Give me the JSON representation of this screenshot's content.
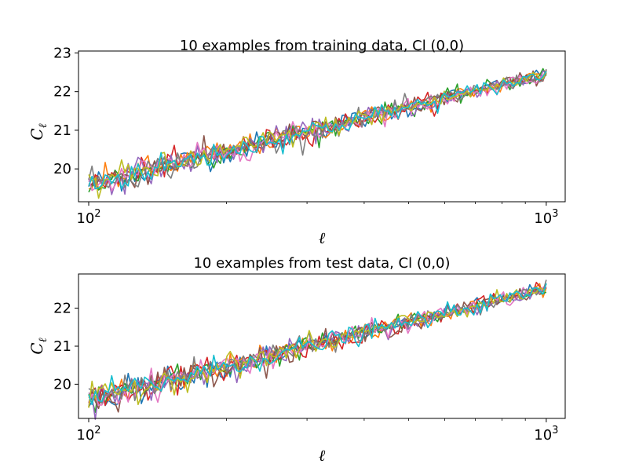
{
  "chart_data": [
    {
      "type": "line",
      "title": "10 examples from training data, Cl (0,0)",
      "xlabel": "ℓ",
      "ylabel_main": "C",
      "ylabel_sub": "ℓ",
      "xscale": "log",
      "xlim": [
        95,
        1100
      ],
      "ylim": [
        19.15,
        23.05
      ],
      "xticks": [
        {
          "value": 100,
          "base": "10",
          "exp": "2"
        },
        {
          "value": 1000,
          "base": "10",
          "exp": "3"
        }
      ],
      "yticks": [
        {
          "value": 20,
          "label": "20"
        },
        {
          "value": 21,
          "label": "21"
        },
        {
          "value": 22,
          "label": "22"
        },
        {
          "value": 23,
          "label": "23"
        }
      ],
      "grid": false,
      "x_range": [
        100,
        1000
      ],
      "y_trend": {
        "at_100": 19.6,
        "at_1000": 22.45
      },
      "n_series": 10
    },
    {
      "type": "line",
      "title": "10 examples from test data, Cl (0,0)",
      "xlabel": "ℓ",
      "ylabel_main": "C",
      "ylabel_sub": "ℓ",
      "xscale": "log",
      "xlim": [
        95,
        1100
      ],
      "ylim": [
        19.1,
        22.9
      ],
      "xticks": [
        {
          "value": 100,
          "base": "10",
          "exp": "2"
        },
        {
          "value": 1000,
          "base": "10",
          "exp": "3"
        }
      ],
      "yticks": [
        {
          "value": 20,
          "label": "20"
        },
        {
          "value": 21,
          "label": "21"
        },
        {
          "value": 22,
          "label": "22"
        }
      ],
      "grid": false,
      "x_range": [
        100,
        1000
      ],
      "y_trend": {
        "at_100": 19.6,
        "at_1000": 22.5
      },
      "n_series": 10
    }
  ],
  "colors": [
    "#1f77b4",
    "#ff7f0e",
    "#2ca02c",
    "#d62728",
    "#9467bd",
    "#8c564b",
    "#e377c2",
    "#7f7f7f",
    "#bcbd22",
    "#17becf"
  ]
}
